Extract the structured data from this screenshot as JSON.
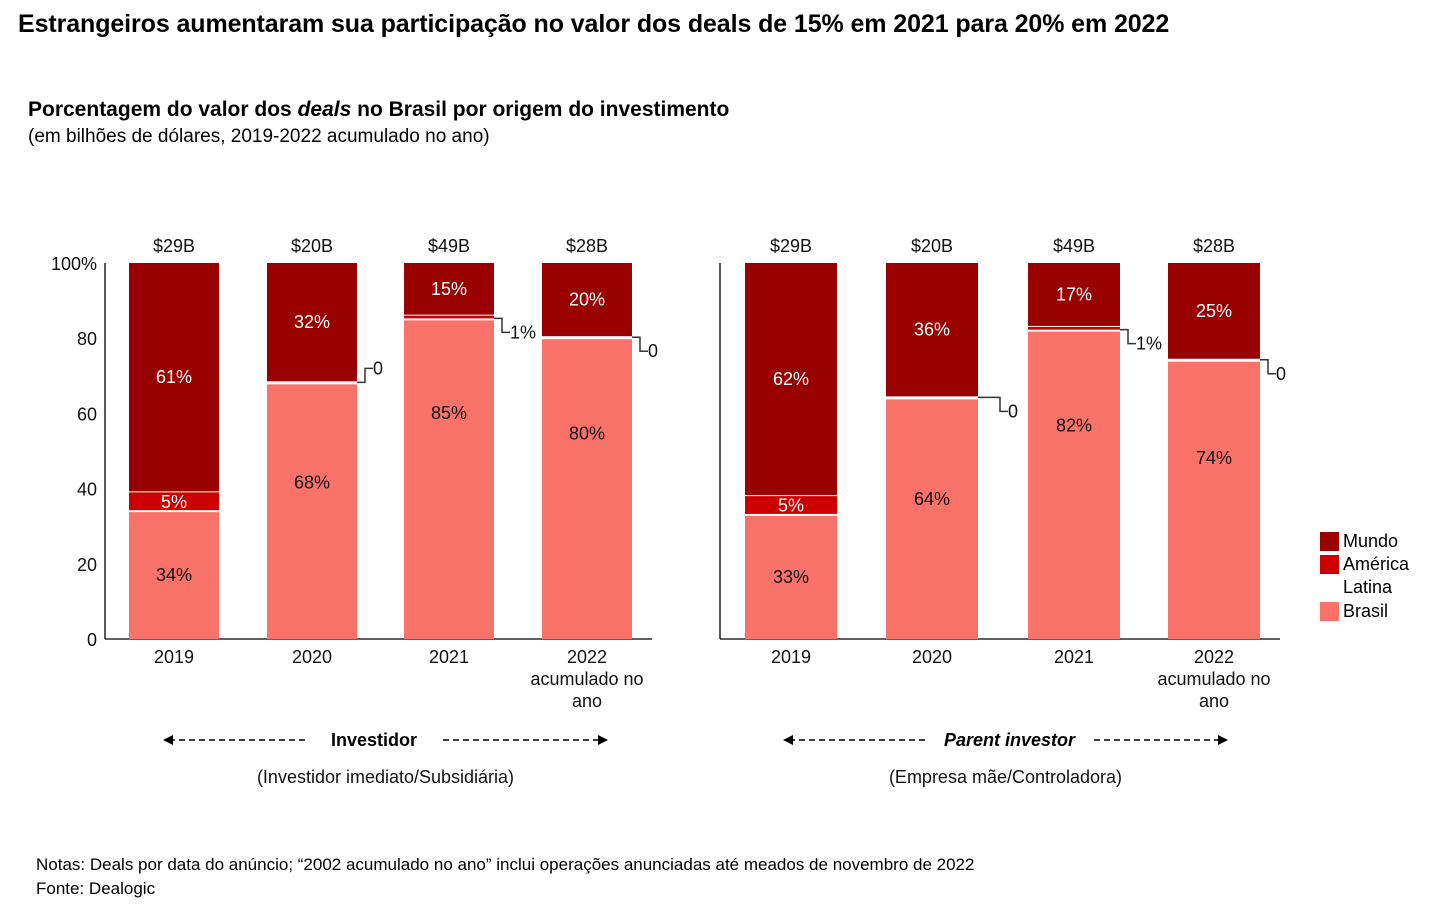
{
  "headline": "Estrangeiros aumentaram sua participação no valor dos deals de 15% em 2021 para 20% em 2022",
  "subtitle": {
    "part1": "Porcentagem do valor dos ",
    "italic": "deals",
    "part2": " no Brasil por origem do investimento"
  },
  "subtitle2": "(em bilhões de dólares, 2019-2022 acumulado no ano)",
  "colors": {
    "mundo": "#990000",
    "america_latina": "#CC0000",
    "brasil": "#F8726A",
    "axis": "#000000"
  },
  "legend": [
    {
      "key": "mundo",
      "label": "Mundo"
    },
    {
      "key": "america_latina",
      "label": "América Latina"
    },
    {
      "key": "brasil",
      "label": "Brasil"
    }
  ],
  "notes": "Notas: Deals por data do anúncio; “2002 acumulado no ano” inclui operações anunciadas até meados de novembro de 2022",
  "source": "Fonte: Dealogic",
  "chart_data": [
    {
      "type": "bar",
      "stacked": true,
      "title": "Investidor",
      "title_italic": false,
      "description": "(Investidor imediato/Subsidiária)",
      "categories": [
        "2019",
        "2020",
        "2021",
        "2022 acumulado no ano"
      ],
      "category_lines": [
        [
          "2019"
        ],
        [
          "2020"
        ],
        [
          "2021"
        ],
        [
          "2022",
          "acumulado no",
          "ano"
        ]
      ],
      "totals": [
        "$29B",
        "$20B",
        "$49B",
        "$28B"
      ],
      "y_ticks": [
        "0",
        "20",
        "40",
        "60",
        "80",
        "100%"
      ],
      "ylim": [
        0,
        100
      ],
      "grid": false,
      "legend_position": "right",
      "series": [
        {
          "name": "Brasil",
          "key": "brasil",
          "values": [
            34,
            68,
            85,
            80
          ],
          "labels": [
            "34%",
            "68%",
            "85%",
            "80%"
          ]
        },
        {
          "name": "América Latina",
          "key": "america_latina",
          "values": [
            5,
            0,
            1,
            0
          ],
          "labels": [
            "5%",
            "0",
            "1%",
            "0"
          ]
        },
        {
          "name": "Mundo",
          "key": "mundo",
          "values": [
            61,
            32,
            15,
            20
          ],
          "labels": [
            "61%",
            "32%",
            "15%",
            "20%"
          ]
        }
      ]
    },
    {
      "type": "bar",
      "stacked": true,
      "title": "Parent investor",
      "title_italic": true,
      "description": "(Empresa mãe/Controladora)",
      "categories": [
        "2019",
        "2020",
        "2021",
        "2022 acumulado no ano"
      ],
      "category_lines": [
        [
          "2019"
        ],
        [
          "2020"
        ],
        [
          "2021"
        ],
        [
          "2022",
          "acumulado no",
          "ano"
        ]
      ],
      "totals": [
        "$29B",
        "$20B",
        "$49B",
        "$28B"
      ],
      "ylim": [
        0,
        100
      ],
      "grid": false,
      "legend_position": "right",
      "series": [
        {
          "name": "Brasil",
          "key": "brasil",
          "values": [
            33,
            64,
            82,
            74
          ],
          "labels": [
            "33%",
            "64%",
            "82%",
            "74%"
          ]
        },
        {
          "name": "América Latina",
          "key": "america_latina",
          "values": [
            5,
            0,
            1,
            0
          ],
          "labels": [
            "5%",
            "0",
            "1%",
            "0"
          ]
        },
        {
          "name": "Mundo",
          "key": "mundo",
          "values": [
            62,
            36,
            17,
            25
          ],
          "labels": [
            "62%",
            "36%",
            "17%",
            "25%"
          ]
        }
      ]
    }
  ]
}
